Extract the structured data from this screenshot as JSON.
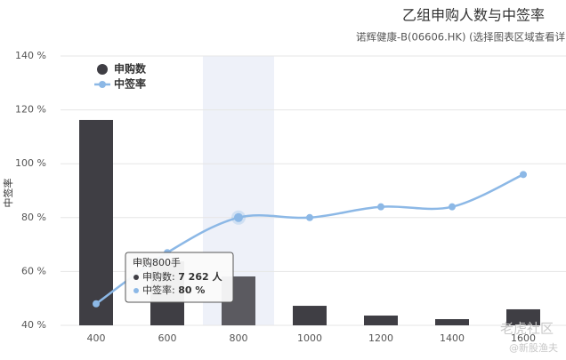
{
  "chart_data": {
    "type": "bar-line",
    "title": "乙组申购人数与中签率",
    "subtitle": "诺辉健康-B(06606.HK) (选择图表区域查看详",
    "y_label": "中签率",
    "categories": [
      "400",
      "600",
      "800",
      "1000",
      "1200",
      "1400",
      "1600"
    ],
    "series": [
      {
        "name": "申购数",
        "type": "bar",
        "axis": "y2",
        "color": "#3f3e44",
        "values": [
          30500,
          9500,
          7262,
          2900,
          1450,
          920,
          2380
        ]
      },
      {
        "name": "中签率",
        "type": "line",
        "color": "#8cb8e6",
        "values": [
          48,
          67,
          80,
          80,
          84,
          84,
          96
        ]
      }
    ],
    "ylim": [
      40,
      140
    ],
    "yticks": [
      {
        "value": 40,
        "label": "40 %"
      },
      {
        "value": 60,
        "label": "60 %"
      },
      {
        "value": 80,
        "label": "80 %"
      },
      {
        "value": 100,
        "label": "100 %"
      },
      {
        "value": 120,
        "label": "120 %"
      },
      {
        "value": 140,
        "label": "140 %"
      }
    ],
    "y2lim": [
      0,
      40000
    ],
    "grid": true,
    "legend": "top-left",
    "highlight_index": 2,
    "tooltip": {
      "title": "申购800手",
      "items": [
        "7 262 人",
        "80 %"
      ]
    },
    "watermark": [
      "老虎社区",
      "@新股渔夫"
    ]
  }
}
